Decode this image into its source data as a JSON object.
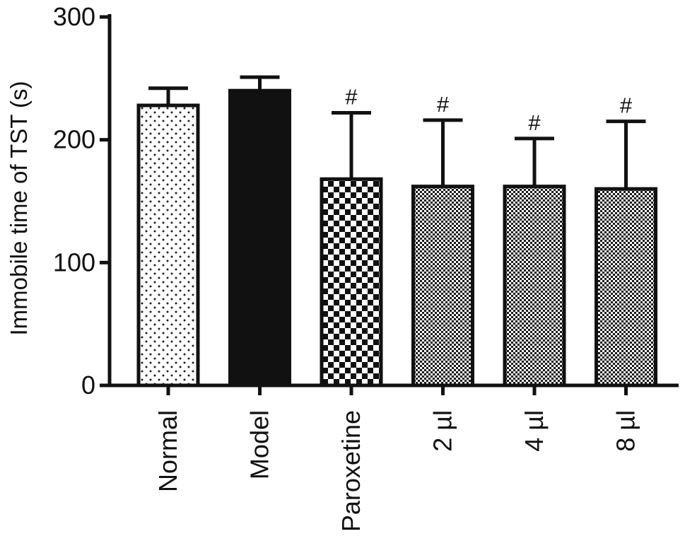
{
  "chart_data": {
    "type": "bar",
    "title": "",
    "xlabel": "",
    "ylabel": "Immobile time of TST (s)",
    "ylim": [
      0,
      300
    ],
    "yticks": [
      0,
      100,
      200,
      300
    ],
    "grid": false,
    "categories": [
      "Normal",
      "Model",
      "Paroxetine",
      "2 µl",
      "4 µl",
      "8 µl"
    ],
    "values": [
      228,
      240,
      168,
      162,
      162,
      160
    ],
    "error_upper": [
      14,
      11,
      54,
      54,
      39,
      55
    ],
    "annotations": [
      "",
      "",
      "#",
      "#",
      "#",
      "#"
    ],
    "fill_patterns": [
      "sparse-dots",
      "solid",
      "checker",
      "fine-dots",
      "fine-dots",
      "fine-dots"
    ],
    "colors": {
      "axis": "#111111",
      "bar_outline": "#111111",
      "solid_fill": "#111111",
      "background": "#ffffff"
    }
  }
}
